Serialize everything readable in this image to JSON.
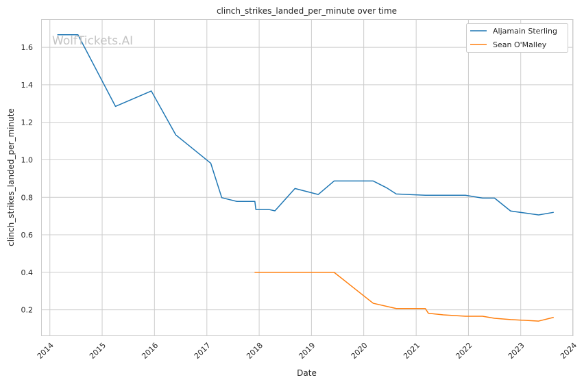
{
  "chart_data": {
    "type": "line",
    "title": "clinch_strikes_landed_per_minute over time",
    "xlabel": "Date",
    "ylabel": "clinch_strikes_landed_per_minute",
    "watermark": "WolfTickets.AI",
    "xlim": [
      "2013-11-01",
      "2024-01-01"
    ],
    "ylim": [
      0.06,
      1.75
    ],
    "x_ticks": [
      "2014",
      "2015",
      "2016",
      "2017",
      "2018",
      "2019",
      "2020",
      "2021",
      "2022",
      "2023",
      "2024"
    ],
    "y_ticks": [
      "0.2",
      "0.4",
      "0.6",
      "0.8",
      "1.0",
      "1.2",
      "1.4",
      "1.6"
    ],
    "grid": true,
    "legend_position": "top-right",
    "series": [
      {
        "name": "Aljamain Sterling",
        "color": "#1f77b4",
        "points": [
          [
            "2014-02-22",
            1.667
          ],
          [
            "2014-07-16",
            1.667
          ],
          [
            "2015-04-04",
            1.285
          ],
          [
            "2015-12-10",
            1.367
          ],
          [
            "2016-05-29",
            1.133
          ],
          [
            "2017-01-28",
            0.982
          ],
          [
            "2017-04-15",
            0.798
          ],
          [
            "2017-07-29",
            0.778
          ],
          [
            "2017-12-02",
            0.778
          ],
          [
            "2017-12-09",
            0.735
          ],
          [
            "2018-03-10",
            0.735
          ],
          [
            "2018-04-21",
            0.728
          ],
          [
            "2018-09-08",
            0.847
          ],
          [
            "2019-02-17",
            0.815
          ],
          [
            "2019-06-08",
            0.887
          ],
          [
            "2019-12-14",
            0.887
          ],
          [
            "2020-03-07",
            0.887
          ],
          [
            "2020-06-06",
            0.852
          ],
          [
            "2020-08-15",
            0.818
          ],
          [
            "2021-03-06",
            0.811
          ],
          [
            "2021-12-11",
            0.811
          ],
          [
            "2022-04-09",
            0.796
          ],
          [
            "2022-07-02",
            0.796
          ],
          [
            "2022-10-22",
            0.727
          ],
          [
            "2023-05-06",
            0.706
          ],
          [
            "2023-08-19",
            0.72
          ]
        ]
      },
      {
        "name": "Sean O'Malley",
        "color": "#ff7f0e",
        "points": [
          [
            "2017-11-30",
            0.4
          ],
          [
            "2018-03-03",
            0.4
          ],
          [
            "2019-06-08",
            0.4
          ],
          [
            "2020-03-07",
            0.235
          ],
          [
            "2020-08-15",
            0.207
          ],
          [
            "2021-03-06",
            0.207
          ],
          [
            "2021-03-27",
            0.182
          ],
          [
            "2021-07-10",
            0.173
          ],
          [
            "2021-12-11",
            0.166
          ],
          [
            "2022-04-09",
            0.166
          ],
          [
            "2022-07-02",
            0.155
          ],
          [
            "2022-10-22",
            0.148
          ],
          [
            "2023-05-06",
            0.14
          ],
          [
            "2023-08-19",
            0.16
          ]
        ]
      }
    ]
  }
}
